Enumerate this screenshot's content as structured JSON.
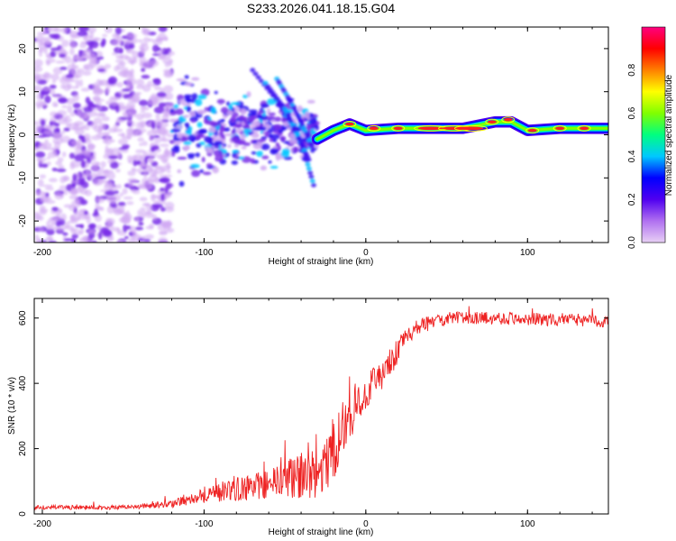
{
  "figure_title": "S233.2026.041.18.15.G04",
  "chart_data": [
    {
      "type": "heatmap",
      "title": "S233.2026.041.18.15.G04",
      "xlabel": "Height of straight line (km)",
      "ylabel": "Frequency (Hz)",
      "xlim": [
        -205,
        150
      ],
      "ylim": [
        -25,
        25
      ],
      "xticks": [
        -200,
        -100,
        0,
        100
      ],
      "yticks": [
        -20,
        -10,
        0,
        10,
        20
      ],
      "colorbar": {
        "label": "Normalized spectral amplitude",
        "range": [
          0,
          1
        ],
        "ticks": [
          0.0,
          0.2,
          0.4,
          0.6,
          0.8
        ],
        "colormap": [
          "#e8d0f5",
          "#b070f0",
          "#5000f0",
          "#0000ff",
          "#00c8ff",
          "#00ff80",
          "#80ff00",
          "#ffff00",
          "#ff8000",
          "#ff0000",
          "#ff0080"
        ]
      },
      "regions": [
        {
          "name": "noise cloud",
          "x_range": [
            -205,
            -120
          ],
          "freq_range": [
            -25,
            25
          ],
          "amplitude": 0.05
        },
        {
          "name": "scattered signal",
          "x_range": [
            -120,
            -30
          ],
          "freq_range": [
            -12,
            12
          ],
          "amplitude": 0.25
        },
        {
          "name": "descending streak",
          "x_range": [
            -70,
            -30
          ],
          "freq_range": [
            -12,
            15
          ],
          "amplitude": 0.15
        },
        {
          "name": "coherent tone",
          "x_range": [
            -20,
            150
          ],
          "freq_range": [
            0,
            4
          ],
          "amplitude": 0.85
        }
      ],
      "tone_track": [
        {
          "x": -30,
          "f": -1
        },
        {
          "x": -20,
          "f": 1
        },
        {
          "x": -10,
          "f": 2.5
        },
        {
          "x": 0,
          "f": 1
        },
        {
          "x": 20,
          "f": 1.5
        },
        {
          "x": 40,
          "f": 1.5
        },
        {
          "x": 60,
          "f": 1.5
        },
        {
          "x": 80,
          "f": 3
        },
        {
          "x": 90,
          "f": 3
        },
        {
          "x": 100,
          "f": 1
        },
        {
          "x": 120,
          "f": 1.5
        },
        {
          "x": 150,
          "f": 1.5
        }
      ]
    },
    {
      "type": "line",
      "xlabel": "Height of straight line (km)",
      "ylabel": "SNR (10 * v/v)",
      "xlim": [
        -205,
        150
      ],
      "ylim": [
        0,
        660
      ],
      "xticks": [
        -200,
        -100,
        0,
        100
      ],
      "yticks": [
        0,
        200,
        400,
        600
      ],
      "series": [
        {
          "name": "SNR",
          "color": "#ee2222",
          "envelope": [
            {
              "x": -205,
              "y": 20,
              "noise": 10
            },
            {
              "x": -150,
              "y": 20,
              "noise": 10
            },
            {
              "x": -120,
              "y": 30,
              "noise": 15
            },
            {
              "x": -100,
              "y": 60,
              "noise": 40
            },
            {
              "x": -60,
              "y": 90,
              "noise": 70
            },
            {
              "x": -40,
              "y": 120,
              "noise": 110
            },
            {
              "x": -30,
              "y": 110,
              "noise": 130
            },
            {
              "x": -20,
              "y": 200,
              "noise": 150
            },
            {
              "x": -10,
              "y": 300,
              "noise": 120
            },
            {
              "x": 0,
              "y": 380,
              "noise": 100
            },
            {
              "x": 10,
              "y": 420,
              "noise": 80
            },
            {
              "x": 20,
              "y": 500,
              "noise": 60
            },
            {
              "x": 30,
              "y": 570,
              "noise": 40
            },
            {
              "x": 50,
              "y": 600,
              "noise": 30
            },
            {
              "x": 80,
              "y": 600,
              "noise": 30
            },
            {
              "x": 150,
              "y": 590,
              "noise": 30
            }
          ]
        }
      ]
    }
  ]
}
